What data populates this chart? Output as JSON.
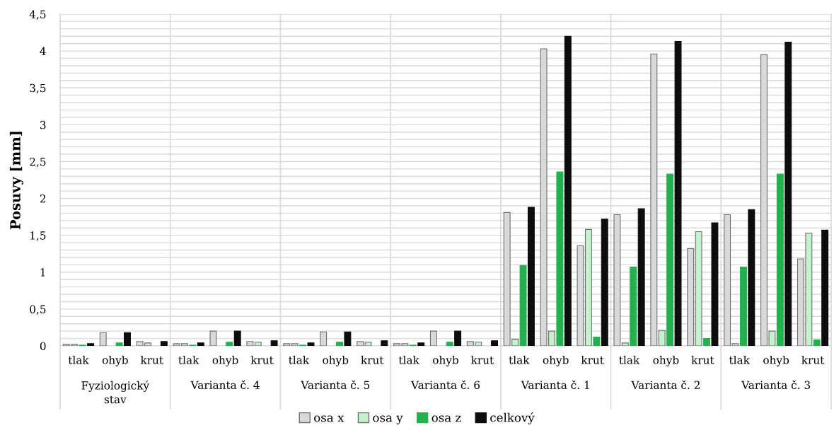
{
  "chart_data": {
    "type": "bar",
    "ylabel": "Posuvy [mm]",
    "categories": [
      "tlak",
      "ohyb",
      "krut",
      "tlak",
      "ohyb",
      "krut",
      "tlak",
      "ohyb",
      "krut",
      "tlak",
      "ohyb",
      "krut",
      "tlak",
      "ohyb",
      "krut",
      "tlak",
      "ohyb",
      "krut",
      "tlak",
      "ohyb",
      "krut"
    ],
    "annotations": [
      "Fyziologický\nstav",
      "Varianta č. 4",
      "Varianta č. 5",
      "Varianta č. 6",
      "Varianta č. 1",
      "Varianta č. 2",
      "Varianta č. 3"
    ],
    "series": [
      {
        "name": "osa x",
        "color": "#d9d9d9",
        "values": [
          0.02,
          0.18,
          0.06,
          0.03,
          0.2,
          0.06,
          0.03,
          0.19,
          0.06,
          0.03,
          0.2,
          0.06,
          1.81,
          4.03,
          1.36,
          1.78,
          3.96,
          1.32,
          1.78,
          3.95,
          1.18
        ]
      },
      {
        "name": "osa y",
        "color": "#c3f2cc",
        "values": [
          0.02,
          0.0,
          0.04,
          0.03,
          0.0,
          0.05,
          0.03,
          0.0,
          0.05,
          0.03,
          0.0,
          0.05,
          0.09,
          0.2,
          1.58,
          0.04,
          0.21,
          1.55,
          0.03,
          0.2,
          1.53
        ]
      },
      {
        "name": "osa z",
        "color": "#22b14c",
        "values": [
          0.01,
          0.04,
          0.0,
          0.01,
          0.05,
          0.0,
          0.01,
          0.05,
          0.0,
          0.01,
          0.05,
          0.0,
          1.09,
          2.36,
          0.12,
          1.07,
          2.33,
          0.1,
          1.07,
          2.33,
          0.08
        ]
      },
      {
        "name": "celkový",
        "color": "#0d0d0d",
        "values": [
          0.03,
          0.18,
          0.06,
          0.04,
          0.2,
          0.07,
          0.04,
          0.19,
          0.07,
          0.04,
          0.2,
          0.07,
          1.88,
          4.2,
          1.72,
          1.86,
          4.13,
          1.67,
          1.85,
          4.12,
          1.57
        ]
      }
    ],
    "ylim": [
      0,
      4.5
    ],
    "yticks": [
      0,
      {
        "value": 0.1,
        "label": null
      },
      {
        "value": 0.2,
        "label": null
      },
      {
        "value": 0.3,
        "label": null
      },
      {
        "value": 0.4,
        "label": null
      },
      {
        "value": 0.5,
        "label": "0,5"
      },
      {
        "value": 0.6,
        "label": null
      },
      {
        "value": 0.7,
        "label": null
      },
      {
        "value": 0.8,
        "label": null
      },
      {
        "value": 0.9,
        "label": null
      },
      1,
      {
        "value": 1.1,
        "label": null
      },
      {
        "value": 1.2,
        "label": null
      },
      {
        "value": 1.3,
        "label": null
      },
      {
        "value": 1.4,
        "label": null
      },
      {
        "value": 1.5,
        "label": "1,5"
      },
      {
        "value": 1.6,
        "label": null
      },
      {
        "value": 1.7,
        "label": null
      },
      {
        "value": 1.8,
        "label": null
      },
      {
        "value": 1.9,
        "label": null
      },
      2,
      {
        "value": 2.1,
        "label": null
      },
      {
        "value": 2.2,
        "label": null
      },
      {
        "value": 2.3,
        "label": null
      },
      {
        "value": 2.4,
        "label": null
      },
      {
        "value": 2.5,
        "label": "2,5"
      },
      {
        "value": 2.6,
        "label": null
      },
      {
        "value": 2.7,
        "label": null
      },
      {
        "value": 2.8,
        "label": null
      },
      {
        "value": 2.9,
        "label": null
      },
      3,
      {
        "value": 3.1,
        "label": null
      },
      {
        "value": 3.2,
        "label": null
      },
      {
        "value": 3.3,
        "label": null
      },
      {
        "value": 3.4,
        "label": null
      },
      {
        "value": 3.5,
        "label": "3,5"
      },
      {
        "value": 3.6,
        "label": null
      },
      {
        "value": 3.7,
        "label": null
      },
      {
        "value": 3.8,
        "label": null
      },
      {
        "value": 3.9,
        "label": null
      },
      4,
      {
        "value": 4.1,
        "label": null
      },
      {
        "value": 4.2,
        "label": null
      },
      {
        "value": 4.3,
        "label": null
      },
      {
        "value": 4.4,
        "label": null
      },
      {
        "value": 4.5,
        "label": "4,5"
      }
    ],
    "grid": "y",
    "legend": "bottom"
  }
}
